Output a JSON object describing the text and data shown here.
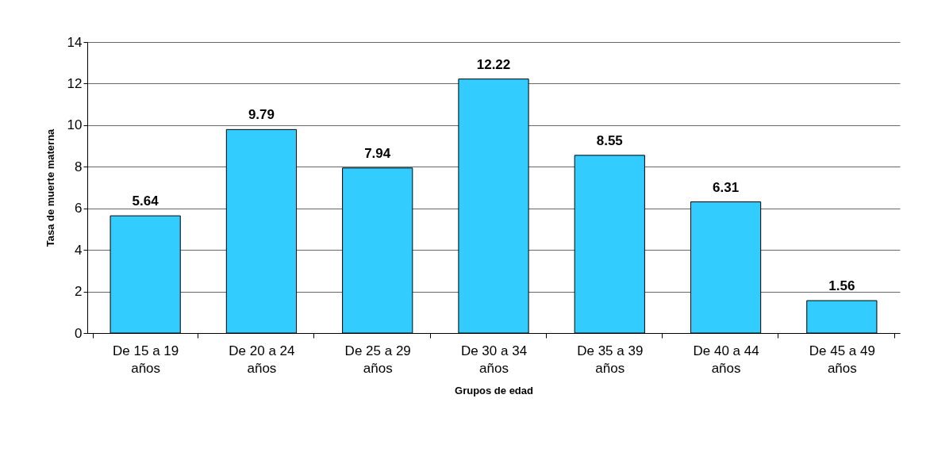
{
  "chart_data": {
    "type": "bar",
    "xlabel": "Grupos de edad",
    "ylabel": "Tasa de muerte materna",
    "categories": [
      "De 15 a 19 años",
      "De 20 a 24 años",
      "De 25 a 29 años",
      "De 30 a 34 años",
      "De 35 a 39 años",
      "De 40 a 44 años",
      "De 45 a 49 años"
    ],
    "values": [
      5.64,
      9.79,
      7.94,
      12.22,
      8.55,
      6.31,
      1.56
    ],
    "color": "#33ccff",
    "ylim": [
      0,
      14
    ],
    "yticks": [
      0,
      2,
      4,
      6,
      8,
      10,
      12,
      14
    ],
    "grid": "y",
    "data_labels": true
  }
}
